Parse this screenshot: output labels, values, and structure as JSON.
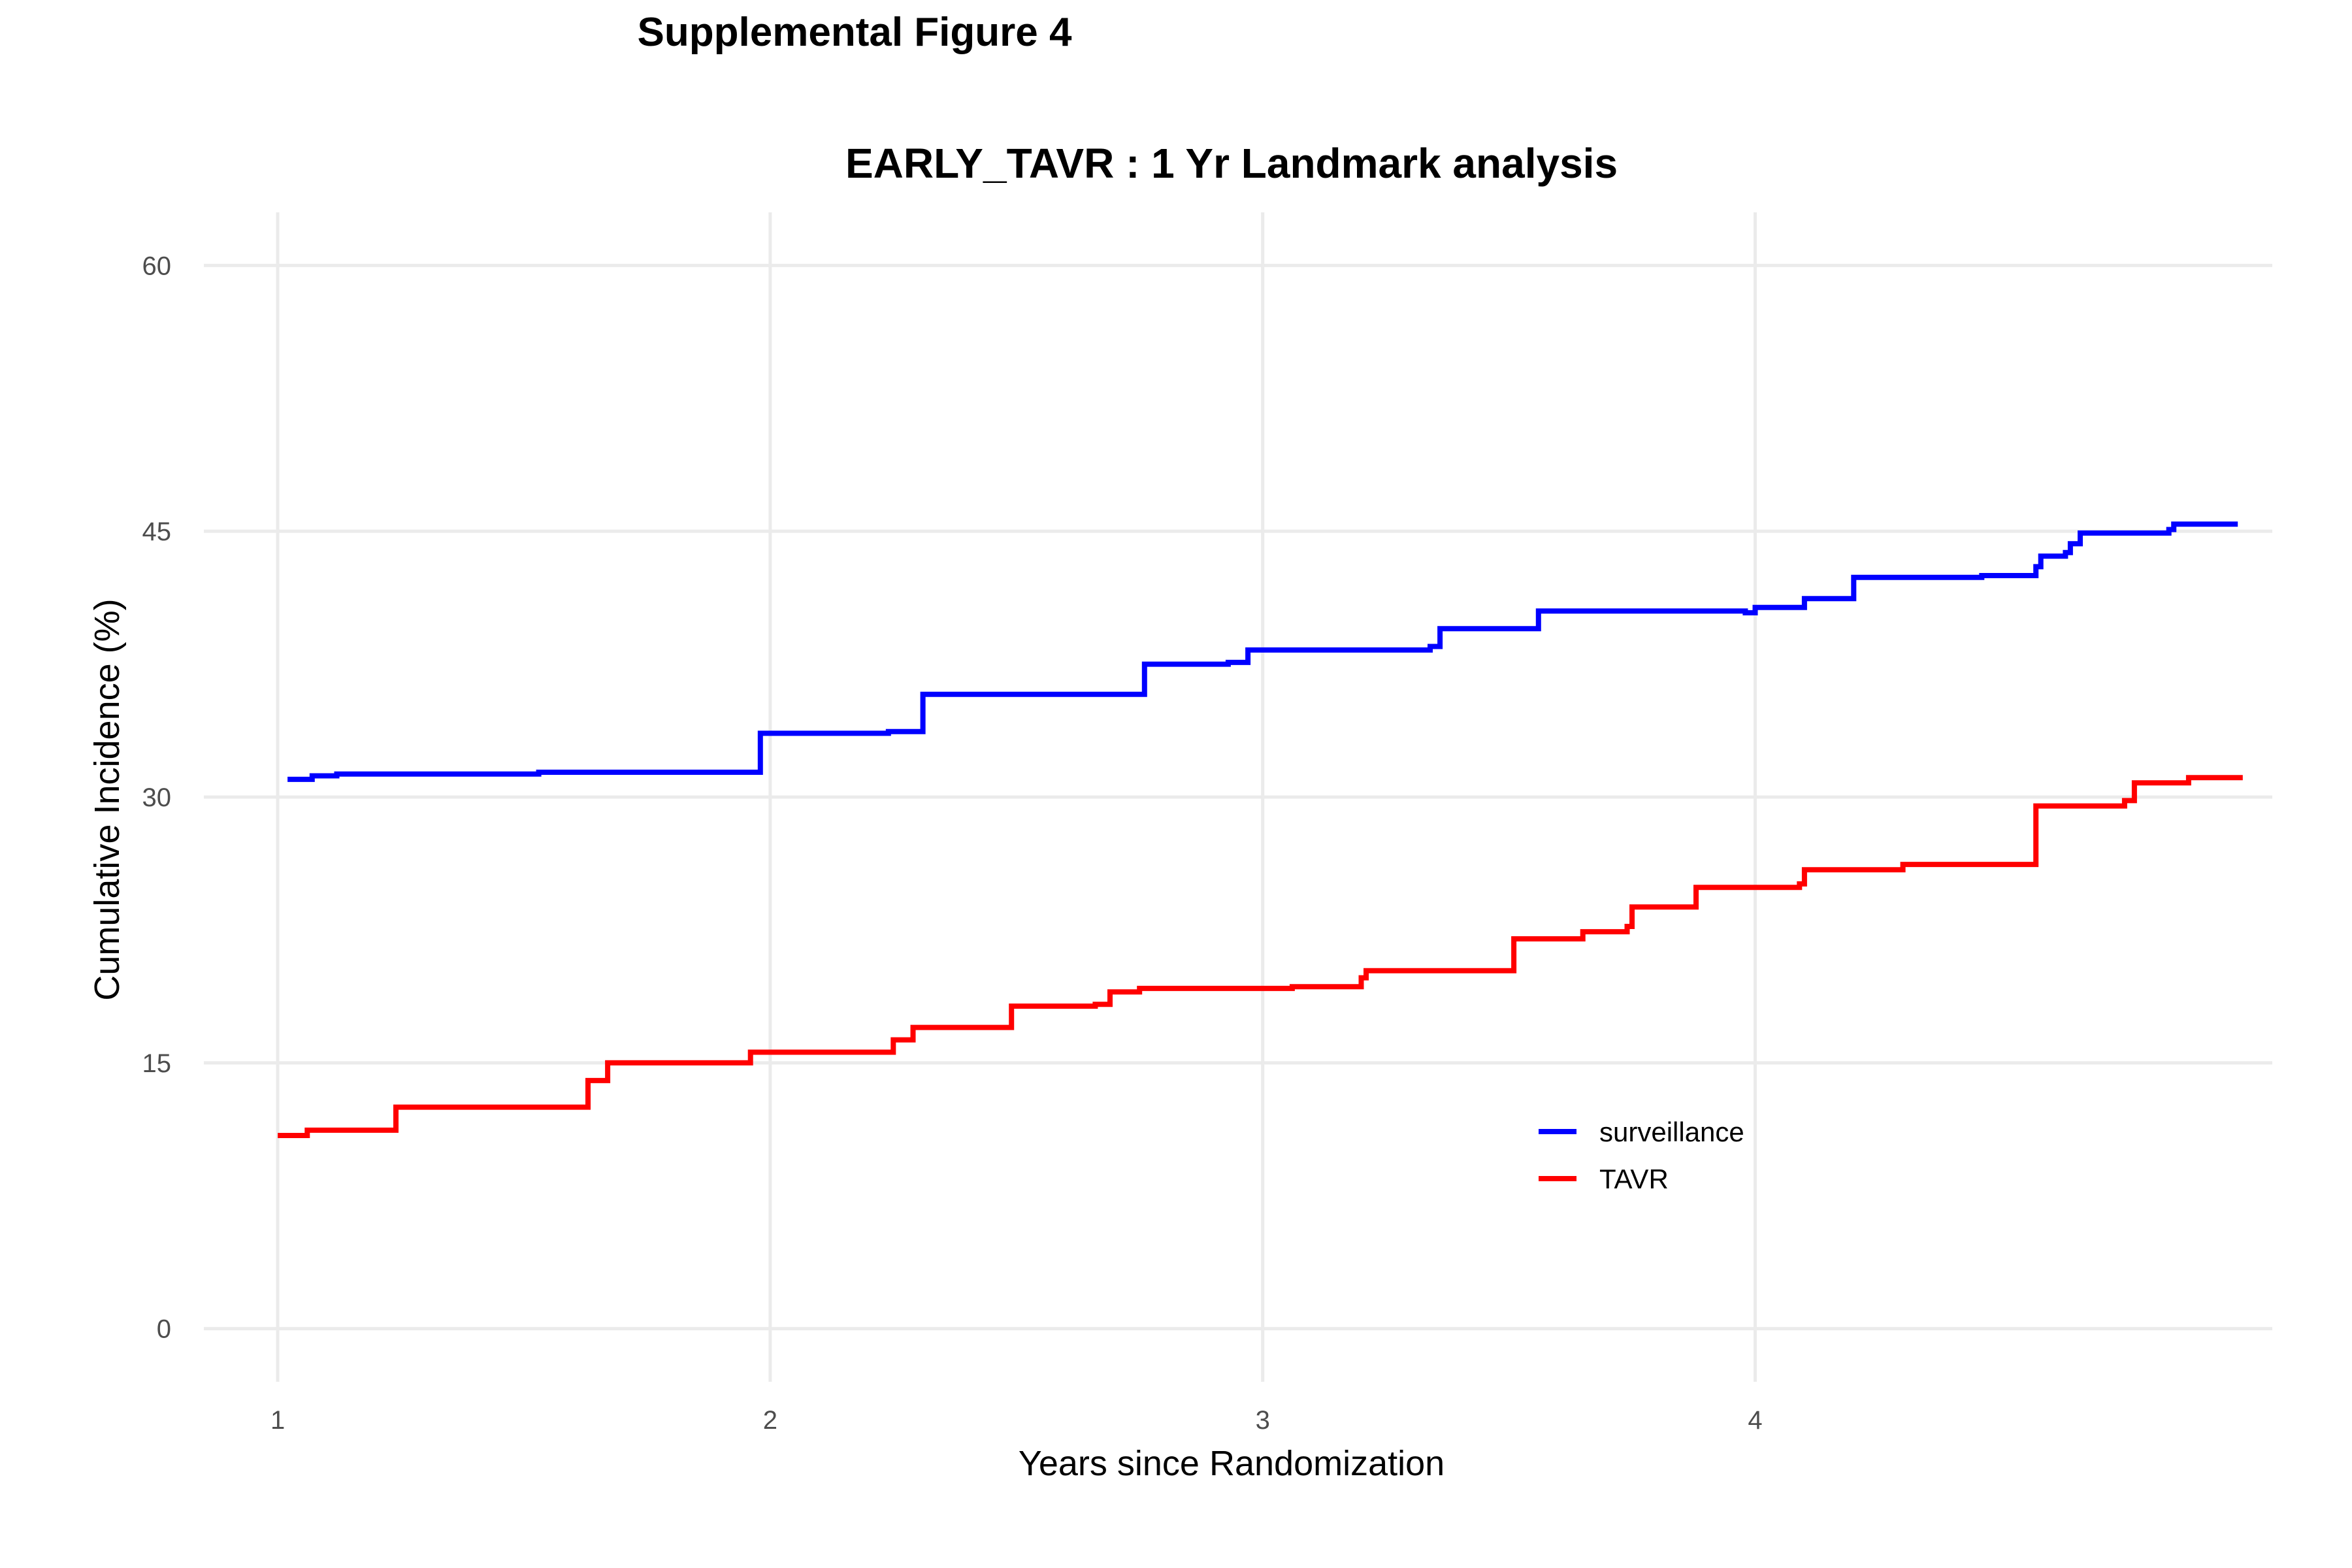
{
  "figure_title": "Supplemental Figure 4",
  "chart_data": {
    "type": "line",
    "step": true,
    "title": "EARLY_TAVR : 1 Yr Landmark analysis",
    "xlabel": "Years since Randomization",
    "ylabel": "Cumulative Incidence (%)",
    "xlim": [
      0.85,
      5.05
    ],
    "ylim": [
      -3,
      63
    ],
    "xticks": [
      "1",
      "2",
      "3",
      "4"
    ],
    "yticks": [
      "0",
      "15",
      "30",
      "45",
      "60"
    ],
    "grid": true,
    "legend_position": "bottom-right",
    "series": [
      {
        "name": "surveillance",
        "color": "#0000ff",
        "x": [
          1.02,
          1.07,
          1.12,
          1.53,
          1.98,
          2.24,
          2.31,
          2.76,
          2.93,
          2.97,
          3.34,
          3.36,
          3.56,
          3.98,
          4.0,
          4.1,
          4.2,
          4.46,
          4.57,
          4.58,
          4.63,
          4.64,
          4.66,
          4.84,
          4.85,
          4.98
        ],
        "y": [
          31.0,
          31.2,
          31.3,
          31.4,
          33.6,
          33.7,
          35.8,
          37.5,
          37.6,
          38.3,
          38.5,
          39.5,
          40.5,
          40.4,
          40.7,
          41.2,
          42.4,
          42.5,
          43.0,
          43.6,
          43.8,
          44.3,
          44.9,
          45.1,
          45.4,
          45.4
        ]
      },
      {
        "name": "TAVR",
        "color": "#ff0000",
        "x": [
          1.0,
          1.06,
          1.24,
          1.63,
          1.67,
          1.96,
          2.25,
          2.29,
          2.49,
          2.66,
          2.69,
          2.75,
          3.06,
          3.2,
          3.21,
          3.51,
          3.65,
          3.74,
          3.75,
          3.88,
          4.09,
          4.1,
          4.3,
          4.45,
          4.57,
          4.75,
          4.77,
          4.88,
          4.99
        ],
        "y": [
          10.9,
          11.2,
          12.5,
          14.0,
          15.0,
          15.6,
          16.3,
          17.0,
          18.2,
          18.3,
          19.0,
          19.2,
          19.3,
          19.8,
          20.2,
          22.0,
          22.4,
          22.7,
          23.8,
          24.9,
          25.1,
          25.9,
          26.2,
          26.2,
          29.5,
          29.8,
          30.8,
          31.1,
          31.1
        ]
      }
    ]
  }
}
